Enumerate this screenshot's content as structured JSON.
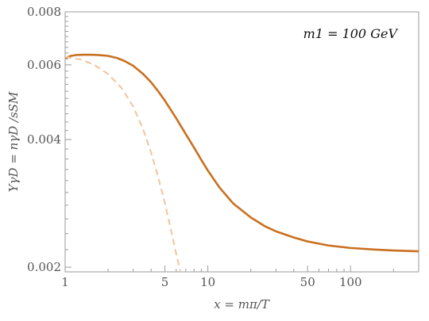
{
  "chart_data": {
    "type": "line",
    "title": "",
    "xlabel": "x = mπ/T",
    "ylabel": "YγD = nγD /sSM",
    "annotation": "m1 = 100 GeV",
    "xscale": "log",
    "yscale": "log",
    "xlim": [
      1,
      300
    ],
    "ylim": [
      0.00195,
      0.008
    ],
    "x_ticks": [
      1,
      5,
      10,
      50,
      100
    ],
    "x_tick_labels": [
      "1",
      "5",
      "10",
      "50",
      "100"
    ],
    "y_ticks": [
      0.002,
      0.004,
      0.006,
      0.008
    ],
    "y_tick_labels": [
      "0.002",
      "0.004",
      "0.006",
      "0.008"
    ],
    "grid": false,
    "legend": "none",
    "series": [
      {
        "style": "solid",
        "color": "#C9701F",
        "x": [
          1,
          1.1,
          1.2,
          1.35,
          1.5,
          1.7,
          2,
          2.3,
          2.6,
          3,
          3.5,
          4,
          4.5,
          5,
          5.5,
          6,
          7,
          8,
          9,
          10,
          12,
          15,
          20,
          25,
          30,
          40,
          50,
          70,
          100,
          150,
          200,
          300
        ],
        "y": [
          0.00623,
          0.0063,
          0.00633,
          0.00634,
          0.00634,
          0.00633,
          0.0063,
          0.00623,
          0.00613,
          0.00597,
          0.00572,
          0.00546,
          0.00519,
          0.00494,
          0.0047,
          0.00449,
          0.00412,
          0.00383,
          0.00358,
          0.00338,
          0.00309,
          0.00283,
          0.00262,
          0.0025,
          0.00243,
          0.00235,
          0.0023,
          0.00225,
          0.00222,
          0.0022,
          0.00219,
          0.00218
        ]
      },
      {
        "style": "dashed",
        "color": "#F2C49A",
        "x": [
          1,
          1.3,
          1.6,
          2,
          2.5,
          3,
          3.5,
          4,
          4.5,
          5,
          5.5,
          6,
          6.4
        ],
        "y": [
          0.00627,
          0.00617,
          0.006,
          0.00571,
          0.00528,
          0.00478,
          0.00425,
          0.00373,
          0.00325,
          0.00283,
          0.00246,
          0.00215,
          0.00196
        ]
      }
    ]
  }
}
